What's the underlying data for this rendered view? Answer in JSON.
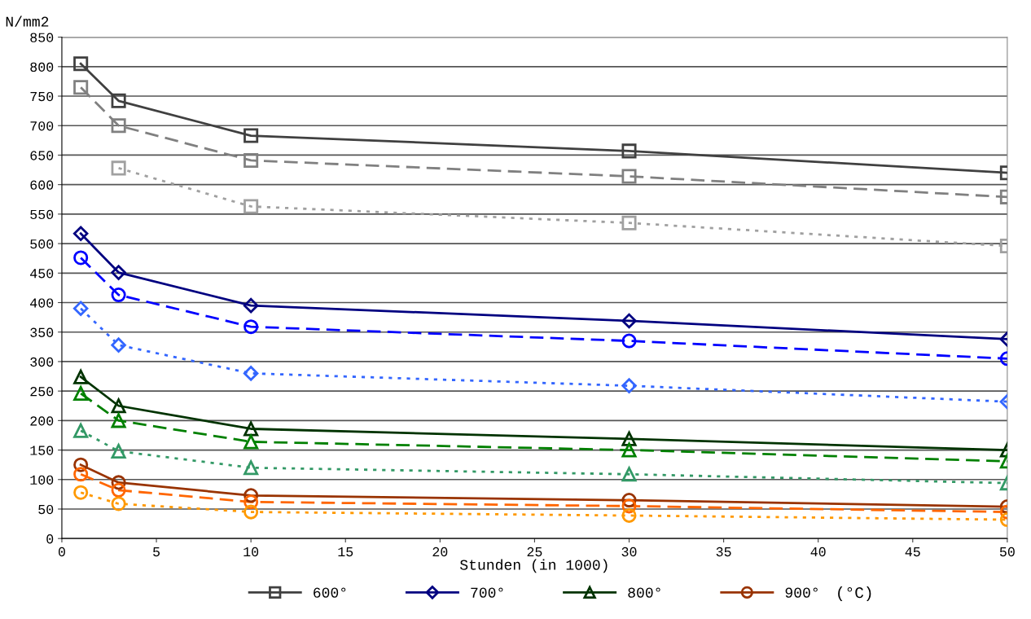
{
  "chart_data": {
    "type": "line",
    "xlabel": "Stunden (in 1000)",
    "ylabel": "N/mm2",
    "legend_title": "(°C)",
    "xlim": [
      0,
      50
    ],
    "xticks": [
      0,
      5,
      10,
      15,
      20,
      25,
      30,
      35,
      40,
      45,
      50
    ],
    "ylim": [
      0,
      850
    ],
    "yticks": [
      0,
      50,
      100,
      150,
      200,
      250,
      300,
      350,
      400,
      450,
      500,
      550,
      600,
      650,
      700,
      750,
      800,
      850
    ],
    "grid": "y",
    "legend": "bottom",
    "series": [
      {
        "name": "600°",
        "color": "#404040",
        "marker": "square",
        "line_style": "solid",
        "x": [
          1,
          3,
          10,
          30,
          50
        ],
        "values": [
          805,
          742,
          683,
          657,
          620
        ]
      },
      {
        "color": "#808080",
        "marker": "square",
        "line_style": "dashed",
        "x": [
          1,
          3,
          10,
          30,
          50
        ],
        "values": [
          765,
          700,
          641,
          614,
          579
        ]
      },
      {
        "color": "#a0a0a0",
        "marker": "square",
        "line_style": "dotted",
        "x": [
          3,
          10,
          30,
          50
        ],
        "values": [
          628,
          563,
          535,
          496
        ]
      },
      {
        "name": "700°",
        "color": "#000080",
        "marker": "diamond",
        "line_style": "solid",
        "x": [
          1,
          3,
          10,
          30,
          50
        ],
        "values": [
          517,
          451,
          395,
          369,
          338
        ]
      },
      {
        "color": "#0000ff",
        "marker": "circle",
        "line_style": "dashed",
        "x": [
          1,
          3,
          10,
          30,
          50
        ],
        "values": [
          476,
          413,
          359,
          335,
          305
        ]
      },
      {
        "color": "#3366ff",
        "marker": "diamond",
        "line_style": "dotted",
        "x": [
          1,
          3,
          10,
          30,
          50
        ],
        "values": [
          390,
          328,
          280,
          259,
          232
        ]
      },
      {
        "name": "800°",
        "color": "#003300",
        "marker": "triangle",
        "line_style": "solid",
        "x": [
          1,
          3,
          10,
          30,
          50
        ],
        "values": [
          274,
          225,
          186,
          169,
          150
        ]
      },
      {
        "color": "#008000",
        "marker": "triangle",
        "line_style": "dashed",
        "x": [
          1,
          3,
          10,
          30,
          50
        ],
        "values": [
          246,
          200,
          164,
          150,
          131
        ]
      },
      {
        "color": "#339966",
        "marker": "triangle",
        "line_style": "dotted",
        "x": [
          1,
          3,
          10,
          30,
          50
        ],
        "values": [
          183,
          148,
          120,
          109,
          94
        ]
      },
      {
        "name": "900°",
        "color": "#993300",
        "marker": "circle",
        "line_style": "solid",
        "x": [
          1,
          3,
          10,
          30,
          50
        ],
        "values": [
          125,
          95,
          73,
          65,
          54
        ]
      },
      {
        "color": "#ff6600",
        "marker": "circle",
        "line_style": "dashed",
        "x": [
          1,
          3,
          10,
          30,
          50
        ],
        "values": [
          109,
          82,
          62,
          55,
          45
        ]
      },
      {
        "color": "#ff9900",
        "marker": "circle",
        "line_style": "dotted",
        "x": [
          1,
          3,
          10,
          30,
          50
        ],
        "values": [
          78,
          59,
          45,
          39,
          32
        ]
      }
    ]
  }
}
